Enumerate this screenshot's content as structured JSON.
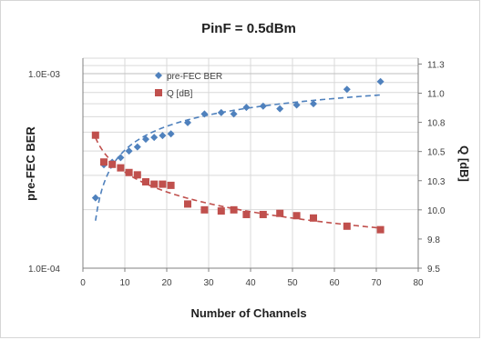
{
  "chart_data": {
    "type": "scatter",
    "title": "PinF = 0.5dBm",
    "xlabel": "Number of Channels",
    "ylabel_left": "pre-FEC BER",
    "ylabel_right": "Q [dB]",
    "x_range": [
      0,
      80
    ],
    "x_ticks": [
      0,
      10,
      20,
      30,
      40,
      50,
      60,
      70,
      80
    ],
    "y_left_scale": "log",
    "y_left_range": [
      0.0001,
      0.0012
    ],
    "y_left_tick_labels": [
      "1.0E-04",
      "1.0E-03"
    ],
    "y_right_range": [
      9.5,
      11.3
    ],
    "y_right_ticks": [
      "9.5",
      "9.8",
      "10.0",
      "10.3",
      "10.5",
      "10.8",
      "11.0",
      "11.3"
    ],
    "grid": true,
    "legend": "top-left inside plot",
    "series": [
      {
        "name": "pre-FEC BER",
        "axis": "left",
        "marker": "diamond",
        "color": "#4f81bd",
        "x": [
          3,
          5,
          7,
          9,
          11,
          13,
          15,
          17,
          19,
          21,
          25,
          29,
          33,
          36,
          39,
          43,
          47,
          51,
          55,
          63,
          71
        ],
        "y": [
          0.00023,
          0.00034,
          0.00035,
          0.00037,
          0.0004,
          0.00042,
          0.00046,
          0.00047,
          0.00048,
          0.00049,
          0.00056,
          0.00062,
          0.00063,
          0.00062,
          0.00067,
          0.00068,
          0.00066,
          0.00069,
          0.0007,
          0.00083,
          0.00091
        ]
      },
      {
        "name": "Q [dB]",
        "axis": "right",
        "marker": "square",
        "color": "#c0504d",
        "x": [
          3,
          5,
          7,
          9,
          11,
          13,
          15,
          17,
          19,
          21,
          25,
          29,
          33,
          36,
          39,
          43,
          47,
          51,
          55,
          63,
          71
        ],
        "y": [
          10.64,
          10.41,
          10.39,
          10.36,
          10.32,
          10.3,
          10.24,
          10.22,
          10.22,
          10.21,
          10.05,
          10.0,
          9.99,
          10.0,
          9.96,
          9.96,
          9.97,
          9.95,
          9.93,
          9.86,
          9.83
        ]
      }
    ],
    "trendlines": [
      {
        "series": "pre-FEC BER",
        "style": "dashed",
        "color": "#4f81bd"
      },
      {
        "series": "Q [dB]",
        "style": "dashed",
        "color": "#c0504d"
      }
    ]
  }
}
